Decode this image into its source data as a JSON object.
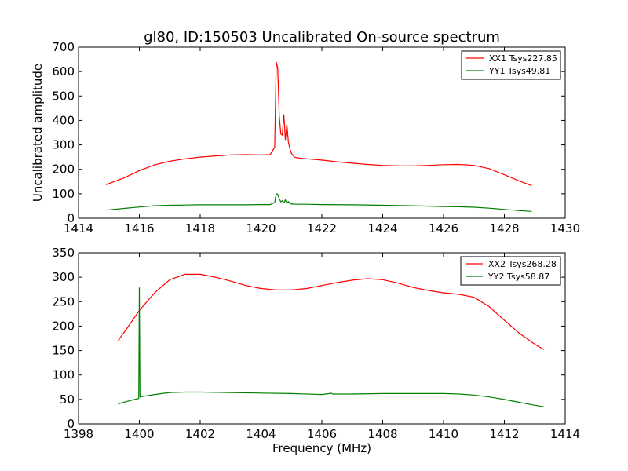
{
  "chart_data": [
    {
      "type": "line",
      "title": "gl80, ID:150503 Uncalibrated On-source spectrum",
      "xlabel": "",
      "ylabel": "Uncalibrated amplitude",
      "xlim": [
        1414,
        1430
      ],
      "ylim": [
        0,
        700
      ],
      "xticks": [
        1414,
        1416,
        1418,
        1420,
        1422,
        1424,
        1426,
        1428,
        1430
      ],
      "yticks": [
        0,
        100,
        200,
        300,
        400,
        500,
        600,
        700
      ],
      "legend_position": "upper right",
      "series": [
        {
          "name": "XX1 Tsys227.85",
          "color": "#ff0000",
          "x": [
            1414.9,
            1415.5,
            1416.0,
            1416.5,
            1417.0,
            1417.5,
            1418.0,
            1418.5,
            1419.0,
            1419.5,
            1420.0,
            1420.3,
            1420.45,
            1420.5,
            1420.55,
            1420.6,
            1420.65,
            1420.7,
            1420.75,
            1420.8,
            1420.85,
            1420.9,
            1420.95,
            1421.0,
            1421.1,
            1421.2,
            1421.5,
            1422.0,
            1422.5,
            1423.0,
            1423.5,
            1424.0,
            1424.5,
            1425.0,
            1425.5,
            1426.0,
            1426.5,
            1427.0,
            1427.5,
            1428.0,
            1428.5,
            1428.9
          ],
          "values": [
            137,
            165,
            195,
            218,
            233,
            243,
            250,
            255,
            259,
            260,
            259,
            260,
            290,
            640,
            615,
            420,
            345,
            340,
            425,
            320,
            385,
            310,
            285,
            265,
            250,
            247,
            243,
            238,
            231,
            225,
            220,
            216,
            214,
            214,
            216,
            219,
            220,
            216,
            203,
            178,
            152,
            133
          ]
        },
        {
          "name": "YY1 Tsys49.81",
          "color": "#008000",
          "x": [
            1414.9,
            1415.5,
            1416.0,
            1416.5,
            1417.0,
            1417.5,
            1418.0,
            1418.5,
            1419.0,
            1419.5,
            1420.0,
            1420.3,
            1420.45,
            1420.5,
            1420.55,
            1420.6,
            1420.65,
            1420.7,
            1420.75,
            1420.8,
            1420.85,
            1420.9,
            1420.95,
            1421.0,
            1421.2,
            1421.5,
            1422.0,
            1423.0,
            1424.0,
            1425.0,
            1426.0,
            1426.5,
            1427.0,
            1427.5,
            1428.0,
            1428.5,
            1428.9
          ],
          "values": [
            33,
            40,
            46,
            51,
            53,
            54,
            55,
            55,
            55,
            55,
            56,
            56,
            64,
            100,
            98,
            80,
            67,
            72,
            63,
            75,
            62,
            68,
            60,
            58,
            57,
            57,
            56,
            55,
            53,
            51,
            48,
            47,
            45,
            41,
            36,
            31,
            28
          ]
        }
      ]
    },
    {
      "type": "line",
      "title": "",
      "xlabel": "Frequency (MHz)",
      "ylabel": "",
      "xlim": [
        1398,
        1414
      ],
      "ylim": [
        0,
        350
      ],
      "xticks": [
        1398,
        1400,
        1402,
        1404,
        1406,
        1408,
        1410,
        1412,
        1414
      ],
      "yticks": [
        0,
        50,
        100,
        150,
        200,
        250,
        300,
        350
      ],
      "legend_position": "upper right",
      "series": [
        {
          "name": "XX2 Tsys268.28",
          "color": "#ff0000",
          "x": [
            1399.3,
            1399.6,
            1400.0,
            1400.5,
            1401.0,
            1401.5,
            1402.0,
            1402.5,
            1403.0,
            1403.5,
            1404.0,
            1404.5,
            1405.0,
            1405.5,
            1406.0,
            1406.5,
            1407.0,
            1407.5,
            1408.0,
            1408.5,
            1409.0,
            1409.5,
            1410.0,
            1410.5,
            1411.0,
            1411.5,
            1412.0,
            1412.5,
            1413.0,
            1413.3
          ],
          "values": [
            170,
            196,
            232,
            268,
            295,
            306,
            306,
            300,
            292,
            283,
            277,
            274,
            274,
            277,
            283,
            289,
            294,
            297,
            295,
            288,
            279,
            273,
            268,
            265,
            259,
            240,
            212,
            185,
            163,
            152
          ]
        },
        {
          "name": "YY2 Tsys58.87",
          "color": "#008000",
          "x": [
            1399.3,
            1399.6,
            1399.98,
            1400.0,
            1400.02,
            1400.5,
            1401.0,
            1401.5,
            1402.0,
            1403.0,
            1404.0,
            1405.0,
            1406.0,
            1406.25,
            1406.3,
            1406.35,
            1407.0,
            1408.0,
            1409.0,
            1410.0,
            1410.5,
            1411.0,
            1411.5,
            1412.0,
            1412.5,
            1413.0,
            1413.3
          ],
          "values": [
            41,
            46,
            52,
            279,
            55,
            60,
            64,
            65,
            65,
            64,
            63,
            62,
            60,
            62,
            63,
            61,
            61,
            62,
            62,
            62,
            61,
            59,
            55,
            50,
            44,
            38,
            35
          ]
        }
      ]
    }
  ]
}
